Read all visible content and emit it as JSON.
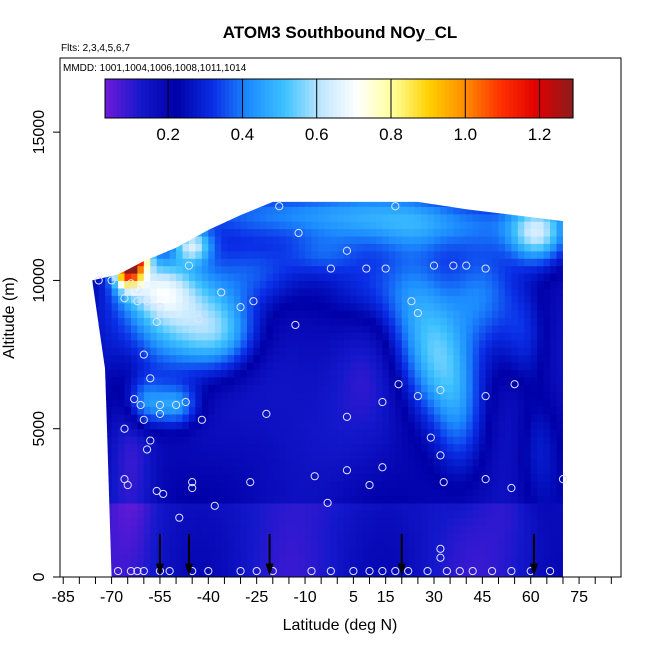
{
  "chart_data": {
    "type": "heatmap",
    "title": "ATOM3 Southbound NOy_CL",
    "flights_label": "Flts: 2,3,4,5,6,7",
    "dates_label": "MMDD: 1001,1004,1006,1008,1011,1014",
    "xlabel": "Latitude (deg N)",
    "ylabel": "Altitude (m)",
    "xlim": [
      -86,
      88
    ],
    "ylim": [
      0,
      17500
    ],
    "x_ticks": [
      -85,
      -70,
      -55,
      -40,
      -25,
      -10,
      5,
      15,
      30,
      45,
      60,
      75
    ],
    "x_minor_ticks": [
      -80,
      -75,
      -65,
      -60,
      -50,
      -45,
      -35,
      -30,
      -20,
      -15,
      -5,
      0,
      10,
      20,
      25,
      35,
      40,
      50,
      55,
      65,
      70,
      80,
      85
    ],
    "y_ticks": [
      0,
      5000,
      10000,
      15000
    ],
    "colorbar": {
      "range": [
        0.03,
        1.29
      ],
      "ticks": [
        0.2,
        0.4,
        0.6,
        0.8,
        1.0,
        1.2
      ],
      "tick_labels": [
        "0.2",
        "0.4",
        "0.6",
        "0.8",
        "1.0",
        "1.2"
      ],
      "divisions": [
        0.2,
        0.4,
        0.6,
        0.8,
        1.0,
        1.2
      ],
      "colors": [
        "#6f1ad9",
        "#1418cc",
        "#0000a8",
        "#0a2ee6",
        "#1c8cff",
        "#3ec2ff",
        "#bfe6ff",
        "#ffffff",
        "#ffff9a",
        "#ffd000",
        "#ff8c00",
        "#ff3000",
        "#e00000",
        "#8c1c1c"
      ]
    },
    "profile_markers_latitude": [
      -55,
      -46,
      -21,
      20,
      61
    ],
    "domain_top_profile": [
      {
        "lat": -68,
        "alt": 10200
      },
      {
        "lat": -60,
        "alt": 10650
      },
      {
        "lat": -50,
        "alt": 11100
      },
      {
        "lat": -40,
        "alt": 11700
      },
      {
        "lat": -30,
        "alt": 12200
      },
      {
        "lat": -20,
        "alt": 12650
      },
      {
        "lat": 25,
        "alt": 12650
      },
      {
        "lat": 40,
        "alt": 12400
      },
      {
        "lat": 55,
        "alt": 12200
      },
      {
        "lat": 70,
        "alt": 12000
      }
    ],
    "domain_bottom_left": [
      {
        "lat": -72,
        "alt": 7000
      },
      {
        "lat": -70,
        "alt": 0
      }
    ],
    "domain_right_edge": 70,
    "observations": [
      {
        "lat": -68,
        "alt": 200
      },
      {
        "lat": -64,
        "alt": 200
      },
      {
        "lat": -62,
        "alt": 200
      },
      {
        "lat": -60,
        "alt": 200
      },
      {
        "lat": -55,
        "alt": 200
      },
      {
        "lat": -52,
        "alt": 200
      },
      {
        "lat": -45,
        "alt": 200
      },
      {
        "lat": -40,
        "alt": 200
      },
      {
        "lat": -30,
        "alt": 200
      },
      {
        "lat": -25,
        "alt": 200
      },
      {
        "lat": -20,
        "alt": 200
      },
      {
        "lat": -8,
        "alt": 200
      },
      {
        "lat": -2,
        "alt": 200
      },
      {
        "lat": 5,
        "alt": 200
      },
      {
        "lat": 10,
        "alt": 200
      },
      {
        "lat": 14,
        "alt": 200
      },
      {
        "lat": 18,
        "alt": 200
      },
      {
        "lat": 22,
        "alt": 200
      },
      {
        "lat": 28,
        "alt": 200
      },
      {
        "lat": 34,
        "alt": 200
      },
      {
        "lat": 38,
        "alt": 200
      },
      {
        "lat": 42,
        "alt": 200
      },
      {
        "lat": 48,
        "alt": 200
      },
      {
        "lat": 54,
        "alt": 200
      },
      {
        "lat": 60,
        "alt": 200
      },
      {
        "lat": 66,
        "alt": 200
      },
      {
        "lat": -66,
        "alt": 5000
      },
      {
        "lat": -63,
        "alt": 6000
      },
      {
        "lat": -58,
        "alt": 6700
      },
      {
        "lat": -60,
        "alt": 7500
      },
      {
        "lat": -56,
        "alt": 8600
      },
      {
        "lat": -62,
        "alt": 9300
      },
      {
        "lat": -59,
        "alt": 9300
      },
      {
        "lat": -66,
        "alt": 9400
      },
      {
        "lat": -64,
        "alt": 9900
      },
      {
        "lat": -62,
        "alt": 9700
      },
      {
        "lat": -55,
        "alt": 9100
      },
      {
        "lat": -43,
        "alt": 8700
      },
      {
        "lat": -36,
        "alt": 9600
      },
      {
        "lat": -30,
        "alt": 9100
      },
      {
        "lat": -26,
        "alt": 9300
      },
      {
        "lat": -46,
        "alt": 10500
      },
      {
        "lat": -12,
        "alt": 11600
      },
      {
        "lat": -18,
        "alt": 12500
      },
      {
        "lat": 18,
        "alt": 12500
      },
      {
        "lat": 3,
        "alt": 11000
      },
      {
        "lat": -2,
        "alt": 10400
      },
      {
        "lat": 9,
        "alt": 10400
      },
      {
        "lat": 15,
        "alt": 10400
      },
      {
        "lat": 30,
        "alt": 10500
      },
      {
        "lat": 36,
        "alt": 10500
      },
      {
        "lat": 40,
        "alt": 10500
      },
      {
        "lat": 46,
        "alt": 10400
      },
      {
        "lat": 23,
        "alt": 9300
      },
      {
        "lat": 25,
        "alt": 8900
      },
      {
        "lat": -13,
        "alt": 8500
      },
      {
        "lat": -70,
        "alt": 10000
      },
      {
        "lat": -74,
        "alt": 10000
      },
      {
        "lat": -61,
        "alt": 5800
      },
      {
        "lat": -55,
        "alt": 5800
      },
      {
        "lat": -50,
        "alt": 5800
      },
      {
        "lat": -47,
        "alt": 5900
      },
      {
        "lat": -42,
        "alt": 5300
      },
      {
        "lat": -60,
        "alt": 5300
      },
      {
        "lat": -58,
        "alt": 4600
      },
      {
        "lat": -59,
        "alt": 4300
      },
      {
        "lat": -55,
        "alt": 5500
      },
      {
        "lat": -22,
        "alt": 5500
      },
      {
        "lat": 3,
        "alt": 5400
      },
      {
        "lat": 14,
        "alt": 5900
      },
      {
        "lat": 19,
        "alt": 6500
      },
      {
        "lat": 25,
        "alt": 6100
      },
      {
        "lat": 32,
        "alt": 6300
      },
      {
        "lat": 46,
        "alt": 6100
      },
      {
        "lat": 55,
        "alt": 6500
      },
      {
        "lat": 29,
        "alt": 4700
      },
      {
        "lat": 32,
        "alt": 4100
      },
      {
        "lat": 33,
        "alt": 3200
      },
      {
        "lat": 46,
        "alt": 3300
      },
      {
        "lat": 54,
        "alt": 3000
      },
      {
        "lat": 70,
        "alt": 3300
      },
      {
        "lat": 3,
        "alt": 3600
      },
      {
        "lat": 14,
        "alt": 3700
      },
      {
        "lat": 10,
        "alt": 3100
      },
      {
        "lat": -7,
        "alt": 3400
      },
      {
        "lat": -27,
        "alt": 3200
      },
      {
        "lat": -45,
        "alt": 3200
      },
      {
        "lat": -45,
        "alt": 3000
      },
      {
        "lat": -56,
        "alt": 2900
      },
      {
        "lat": -54,
        "alt": 2800
      },
      {
        "lat": -66,
        "alt": 3300
      },
      {
        "lat": -65,
        "alt": 3100
      },
      {
        "lat": -49,
        "alt": 2000
      },
      {
        "lat": -38,
        "alt": 2400
      },
      {
        "lat": -3,
        "alt": 2500
      },
      {
        "lat": 32,
        "alt": 950
      },
      {
        "lat": 32,
        "alt": 650
      }
    ],
    "field_note": "Continuous NOy colour field in altitude-latitude space (southbound transect); values mostly 0.1-0.4, higher (0.4-0.8) in upper troposphere near -60..-30 and in tropical patches, peaks >1.0 near -65 at 10-11 km."
  }
}
